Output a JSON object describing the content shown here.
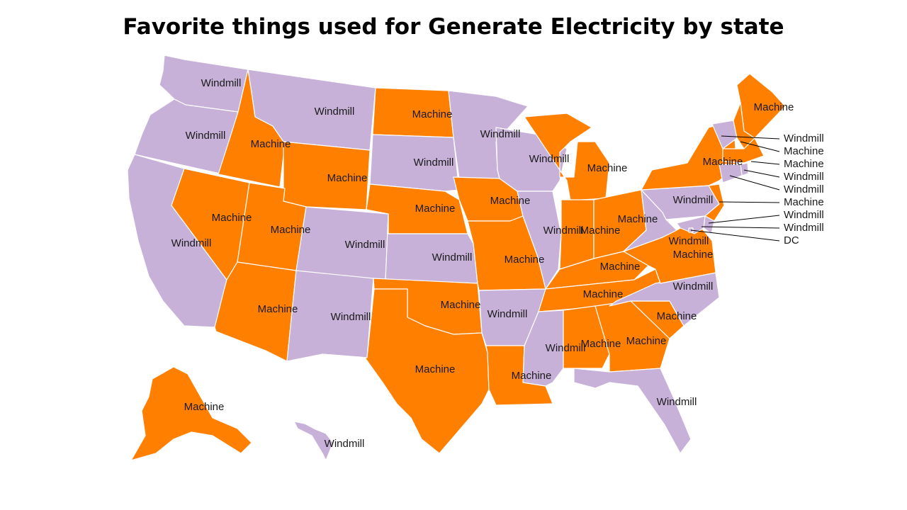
{
  "title": "Favorite things used for Generate Electricity by state",
  "colors": {
    "Machine": "#ff7f00",
    "Windmill": "#c7b1d8"
  },
  "states": {
    "WA": "Windmill",
    "OR": "Windmill",
    "CA": "Windmill",
    "ID": "Machine",
    "NV": "Machine",
    "MT": "Windmill",
    "WY": "Machine",
    "UT": "Machine",
    "AZ": "Machine",
    "CO": "Windmill",
    "NM": "Windmill",
    "ND": "Machine",
    "SD": "Windmill",
    "NE": "Machine",
    "KS": "Windmill",
    "OK": "Machine",
    "TX": "Machine",
    "MN": "Windmill",
    "IA": "Machine",
    "MO": "Machine",
    "AR": "Windmill",
    "LA": "Machine",
    "WI": "Windmill",
    "IL": "Windmill",
    "MI": "Machine",
    "IN": "Machine",
    "OH": "Machine",
    "KY": "Machine",
    "TN": "Machine",
    "MS": "Windmill",
    "AL": "Machine",
    "GA": "Machine",
    "FL": "Windmill",
    "SC": "Machine",
    "NC": "Windmill",
    "VA": "Machine",
    "WV": "Windmill",
    "PA": "Windmill",
    "NY": "Machine",
    "ME": "Machine",
    "AK": "Machine",
    "HI": "Windmill",
    "VT": "Windmill",
    "NH": "Machine",
    "MA": "Machine",
    "RI": "Windmill",
    "CT": "Windmill",
    "NJ": "Machine",
    "DE": "Windmill",
    "MD": "Windmill",
    "DC": "DC"
  },
  "callouts": [
    "Windmill",
    "Machine",
    "Machine",
    "Windmill",
    "Windmill",
    "Machine",
    "Windmill",
    "Windmill",
    "DC"
  ]
}
